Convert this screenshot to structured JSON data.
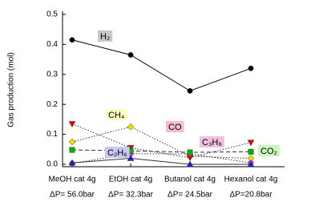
{
  "chart_data": {
    "type": "line",
    "y_label": "Gas production (mol)",
    "categories": [
      "MeOH cat 4g",
      "EtOH cat 4g",
      "Butanol cat 4g",
      "Hexanol cat 4g"
    ],
    "category_notes": [
      "ΔP= 56.0bar",
      "ΔP= 32.3bar",
      "ΔP= 24.5bar",
      "ΔP=20.8bar"
    ],
    "ylim": [
      0,
      0.5
    ],
    "yticks": [
      {
        "value": 0,
        "label": "0.0"
      },
      0.1,
      0.2,
      0.3,
      0.4,
      0.5
    ],
    "series": [
      {
        "name": "H₂",
        "color": "#000000",
        "marker": "circle",
        "dash": "solid",
        "label_bg": "#c8c8c8",
        "values": [
          0.415,
          0.365,
          0.245,
          0.32
        ]
      },
      {
        "name": "CH₄",
        "color": "#e8e000",
        "marker": "diamond",
        "dash": "dotted",
        "label_bg": "#ffffc0",
        "values": [
          0.075,
          0.125,
          0.027,
          0.02
        ]
      },
      {
        "name": "CO",
        "color": "#e00000",
        "marker": "triangle-down",
        "dash": "dotted",
        "label_bg": "#f4c0c8",
        "values": [
          0.135,
          0.055,
          0.022,
          0.073
        ]
      },
      {
        "name": "C₃H₈",
        "color": "#e040e0",
        "marker": "circle",
        "dash": "dotted",
        "label_bg": "#f4c0e0",
        "values": [
          0.003,
          0.035,
          0.035,
          0.005
        ]
      },
      {
        "name": "C₂H₆",
        "color": "#2020c0",
        "marker": "triangle-up",
        "dash": "solid",
        "label_bg": "#c8c8f4",
        "values": [
          0.005,
          0.02,
          0.0,
          0.0
        ]
      },
      {
        "name": "CO₂",
        "color": "#00b000",
        "marker": "square",
        "dash": "dashed",
        "label_bg": "#c8f4c0",
        "values": [
          0.048,
          0.045,
          0.04,
          0.042
        ]
      }
    ]
  }
}
